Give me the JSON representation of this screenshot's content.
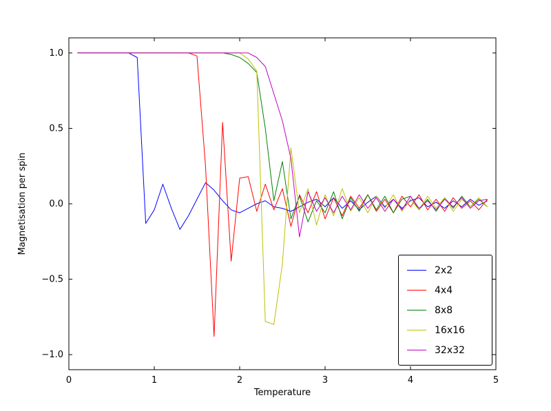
{
  "figure": {
    "background": "#ffffff",
    "frame_color": "#000000"
  },
  "chart_data": {
    "type": "line",
    "title": "",
    "xlabel": "Temperature",
    "ylabel": "Magnetisation per spin",
    "xlim": [
      0,
      5
    ],
    "ylim": [
      -1.1,
      1.1
    ],
    "grid": false,
    "legend_position": "lower right",
    "x_ticks": [
      0,
      1,
      2,
      3,
      4,
      5
    ],
    "x_tick_labels": [
      "0",
      "1",
      "2",
      "3",
      "4",
      "5"
    ],
    "y_ticks": [
      -1.0,
      -0.5,
      0.0,
      0.5,
      1.0
    ],
    "y_tick_labels": [
      "−1.0",
      "−0.5",
      "0.0",
      "0.5",
      "1.0"
    ],
    "x": [
      0.1,
      0.2,
      0.3,
      0.4,
      0.5,
      0.6,
      0.7,
      0.8,
      0.9,
      1.0,
      1.1,
      1.2,
      1.3,
      1.4,
      1.5,
      1.6,
      1.7,
      1.8,
      1.9,
      2.0,
      2.1,
      2.2,
      2.3,
      2.4,
      2.5,
      2.6,
      2.7,
      2.8,
      2.9,
      3.0,
      3.1,
      3.2,
      3.3,
      3.4,
      3.5,
      3.6,
      3.7,
      3.8,
      3.9,
      4.0,
      4.1,
      4.2,
      4.3,
      4.4,
      4.5,
      4.6,
      4.7,
      4.8,
      4.9
    ],
    "series": [
      {
        "name": "2x2",
        "color": "#0000ff",
        "values": [
          1.0,
          1.0,
          1.0,
          1.0,
          1.0,
          1.0,
          1.0,
          0.97,
          -0.13,
          -0.04,
          0.13,
          -0.03,
          -0.17,
          -0.08,
          0.03,
          0.14,
          0.09,
          0.02,
          -0.04,
          -0.06,
          -0.03,
          0.0,
          0.02,
          -0.02,
          -0.03,
          -0.05,
          -0.02,
          0.01,
          0.03,
          -0.02,
          0.04,
          -0.03,
          0.02,
          -0.04,
          0.01,
          0.05,
          -0.02,
          0.03,
          -0.03,
          0.02,
          0.04,
          -0.02,
          0.01,
          -0.03,
          0.02,
          -0.02,
          0.03,
          -0.01,
          0.02
        ]
      },
      {
        "name": "4x4",
        "color": "#ff0000",
        "values": [
          1.0,
          1.0,
          1.0,
          1.0,
          1.0,
          1.0,
          1.0,
          1.0,
          1.0,
          1.0,
          1.0,
          1.0,
          1.0,
          1.0,
          0.98,
          0.25,
          -0.88,
          0.54,
          -0.38,
          0.17,
          0.18,
          -0.05,
          0.13,
          -0.04,
          0.1,
          -0.15,
          0.06,
          -0.06,
          0.08,
          -0.1,
          0.04,
          -0.08,
          0.05,
          -0.03,
          0.06,
          -0.05,
          0.03,
          -0.06,
          0.05,
          -0.02,
          0.06,
          -0.04,
          0.03,
          -0.05,
          0.04,
          -0.03,
          0.02,
          -0.04,
          0.03
        ]
      },
      {
        "name": "8x8",
        "color": "#008000",
        "values": [
          1.0,
          1.0,
          1.0,
          1.0,
          1.0,
          1.0,
          1.0,
          1.0,
          1.0,
          1.0,
          1.0,
          1.0,
          1.0,
          1.0,
          1.0,
          1.0,
          1.0,
          1.0,
          0.99,
          0.97,
          0.93,
          0.87,
          0.5,
          0.02,
          0.28,
          -0.1,
          0.05,
          -0.12,
          0.02,
          -0.06,
          0.08,
          -0.1,
          0.04,
          -0.05,
          0.06,
          -0.04,
          0.05,
          -0.06,
          0.03,
          0.05,
          -0.04,
          0.03,
          -0.05,
          0.04,
          -0.03,
          0.05,
          -0.02,
          0.03,
          -0.02
        ]
      },
      {
        "name": "16x16",
        "color": "#bfbf00",
        "values": [
          1.0,
          1.0,
          1.0,
          1.0,
          1.0,
          1.0,
          1.0,
          1.0,
          1.0,
          1.0,
          1.0,
          1.0,
          1.0,
          1.0,
          1.0,
          1.0,
          1.0,
          1.0,
          1.0,
          1.0,
          0.96,
          0.88,
          -0.78,
          -0.8,
          -0.4,
          0.37,
          -0.06,
          0.1,
          -0.14,
          0.06,
          -0.08,
          0.1,
          -0.05,
          0.04,
          -0.06,
          0.05,
          -0.03,
          0.06,
          -0.05,
          0.03,
          -0.04,
          0.05,
          -0.03,
          0.04,
          -0.05,
          0.03,
          -0.02,
          0.04,
          -0.02
        ]
      },
      {
        "name": "32x32",
        "color": "#bf00bf",
        "values": [
          1.0,
          1.0,
          1.0,
          1.0,
          1.0,
          1.0,
          1.0,
          1.0,
          1.0,
          1.0,
          1.0,
          1.0,
          1.0,
          1.0,
          1.0,
          1.0,
          1.0,
          1.0,
          1.0,
          1.0,
          1.0,
          0.97,
          0.91,
          0.73,
          0.55,
          0.3,
          -0.22,
          0.08,
          -0.05,
          0.04,
          -0.06,
          0.05,
          -0.04,
          0.06,
          -0.03,
          0.04,
          -0.05,
          0.03,
          -0.04,
          0.05,
          -0.03,
          0.02,
          -0.04,
          0.03,
          -0.02,
          0.04,
          -0.03,
          0.02,
          0.03
        ]
      }
    ]
  }
}
